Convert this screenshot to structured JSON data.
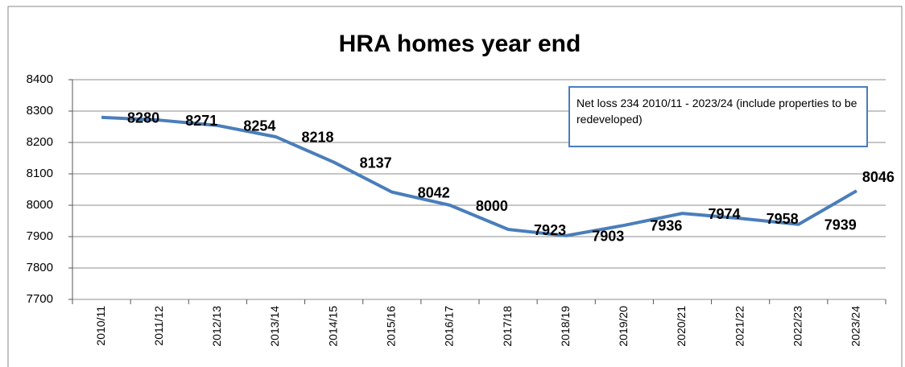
{
  "chart_data": {
    "type": "line",
    "title": "HRA homes year end",
    "categories": [
      "2010/11",
      "2011/12",
      "2012/13",
      "2013/14",
      "2014/15",
      "2015/16",
      "2016/17",
      "2017/18",
      "2018/19",
      "2019/20",
      "2020/21",
      "2021/22",
      "2022/23",
      "2023/24"
    ],
    "values": [
      8280,
      8271,
      8254,
      8218,
      8137,
      8042,
      8000,
      7923,
      7903,
      7936,
      7974,
      7958,
      7939,
      8046
    ],
    "color": "#4a7ebb",
    "ylim": [
      7700,
      8400
    ],
    "yticks": [
      7700,
      7800,
      7900,
      8000,
      8100,
      8200,
      8300,
      8400
    ],
    "grid": true,
    "annotation": "Net loss 234 2010/11 - 2023/24 (include properties to be redeveloped)"
  }
}
